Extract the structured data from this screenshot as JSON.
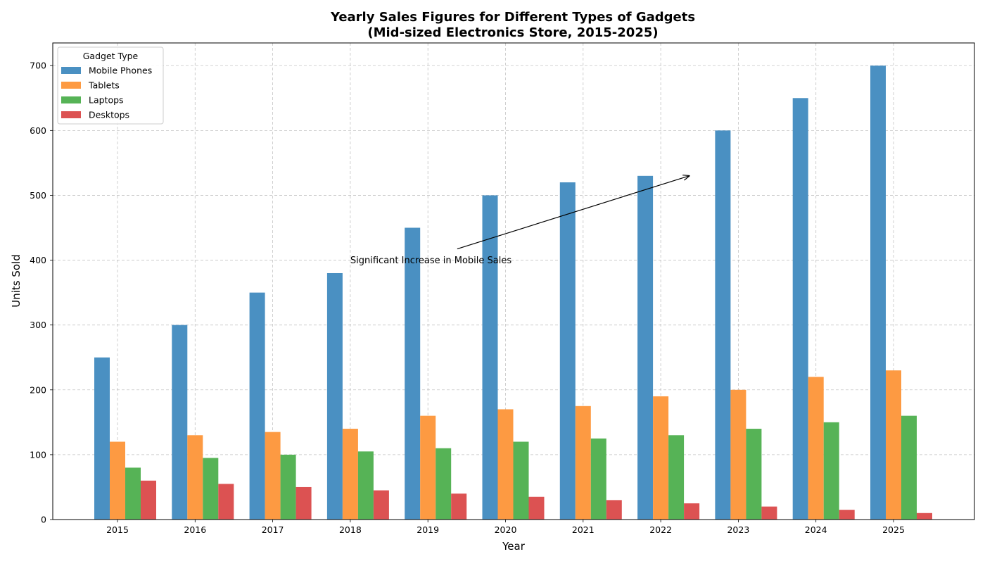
{
  "chart_data": {
    "type": "bar",
    "title": "Yearly Sales Figures for Different Types of Gadgets",
    "subtitle": "(Mid-sized Electronics Store, 2015-2025)",
    "xlabel": "Year",
    "ylabel": "Units Sold",
    "ylim": [
      0,
      735
    ],
    "yticks": [
      0,
      100,
      200,
      300,
      400,
      500,
      600,
      700
    ],
    "grid": true,
    "categories": [
      "2015",
      "2016",
      "2017",
      "2018",
      "2019",
      "2020",
      "2021",
      "2022",
      "2023",
      "2024",
      "2025"
    ],
    "legend": {
      "title": "Gadget Type",
      "placement": "top-left"
    },
    "series": [
      {
        "name": "Mobile Phones",
        "color": "#4a90c2",
        "values": [
          250,
          300,
          350,
          380,
          450,
          500,
          520,
          530,
          600,
          650,
          700
        ]
      },
      {
        "name": "Tablets",
        "color": "#fd9a42",
        "values": [
          120,
          130,
          135,
          140,
          160,
          170,
          175,
          190,
          200,
          220,
          230
        ]
      },
      {
        "name": "Laptops",
        "color": "#56b356",
        "values": [
          80,
          95,
          100,
          105,
          110,
          120,
          125,
          130,
          140,
          150,
          160
        ]
      },
      {
        "name": "Desktops",
        "color": "#dc5252",
        "values": [
          60,
          55,
          50,
          45,
          40,
          35,
          30,
          25,
          20,
          15,
          10
        ]
      }
    ],
    "annotation": {
      "text": "Significant Increase in Mobile Sales",
      "text_at": {
        "x": "2018",
        "y": 400
      },
      "arrow_to": {
        "x": "2022",
        "y": 530
      }
    }
  }
}
